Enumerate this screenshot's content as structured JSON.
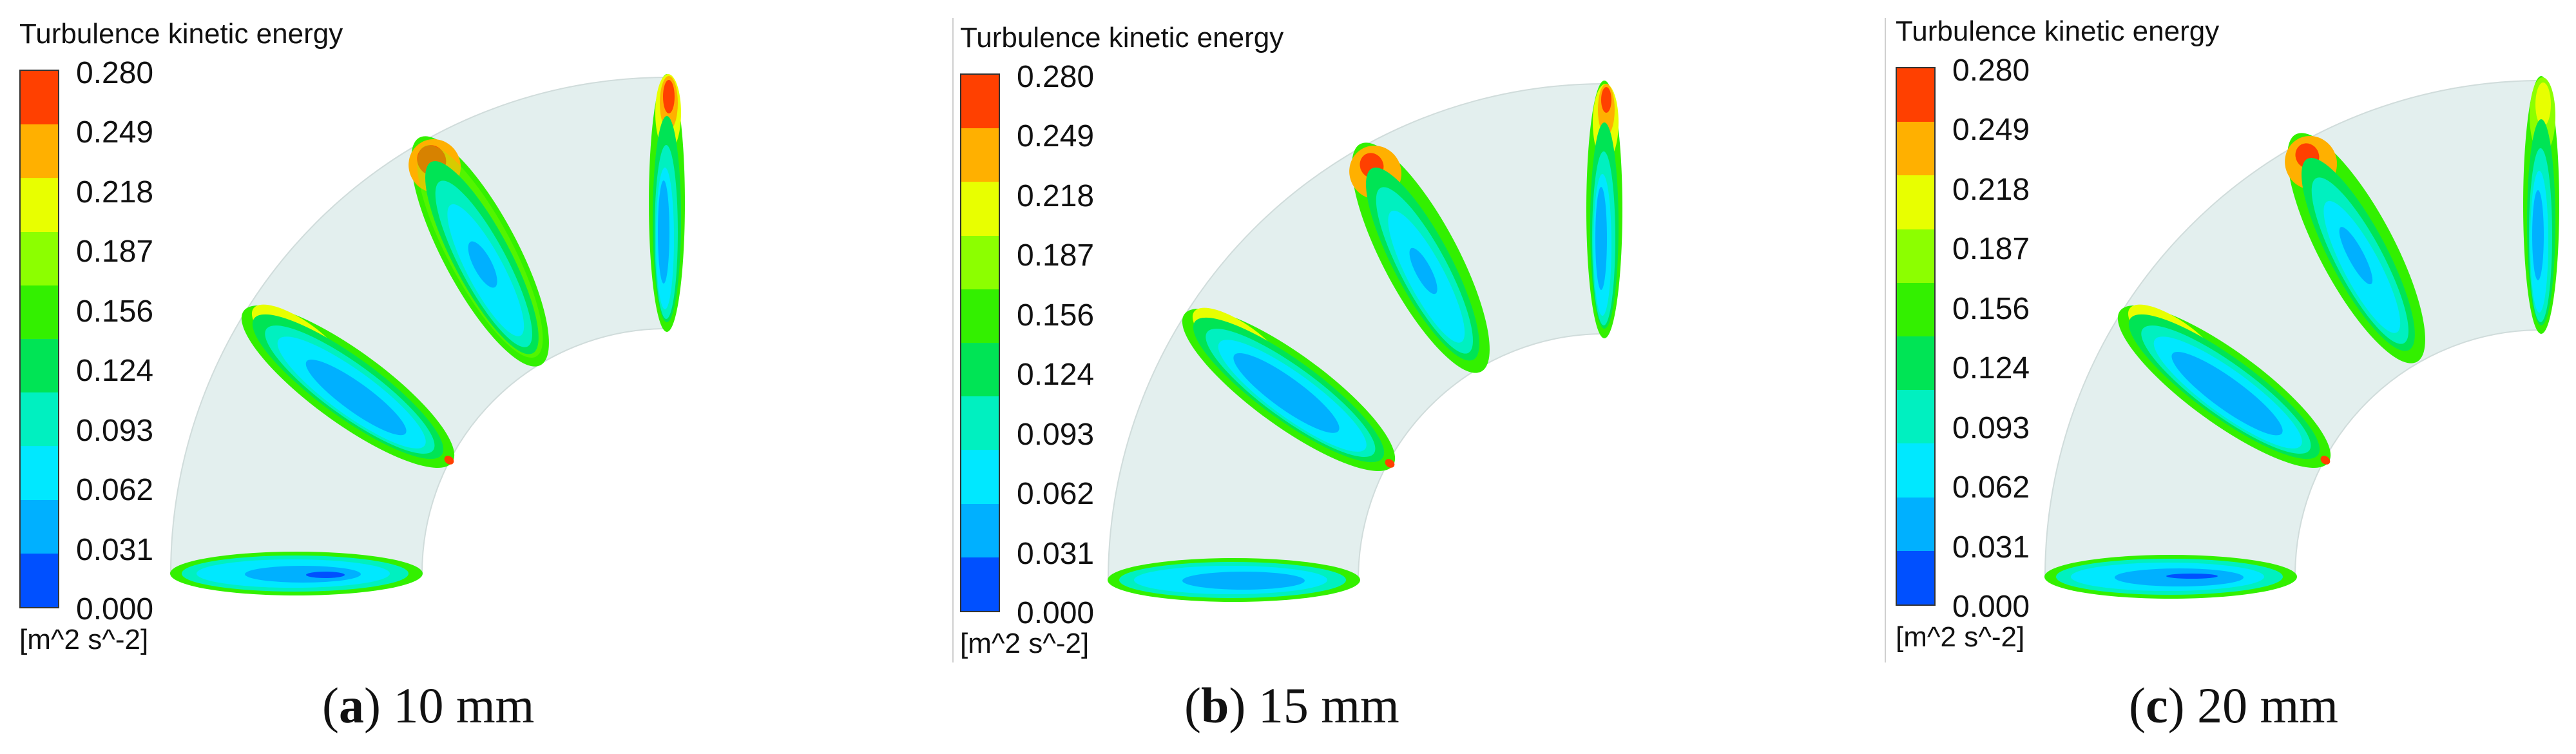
{
  "legend": {
    "title": "Turbulence kinetic energy",
    "ticks": [
      "0.280",
      "0.249",
      "0.218",
      "0.187",
      "0.156",
      "0.124",
      "0.093",
      "0.062",
      "0.031",
      "0.000"
    ],
    "units": "[m^2 s^-2]",
    "colors_top_to_bottom": [
      "#ff4000",
      "#ffb000",
      "#e8ff00",
      "#8cff00",
      "#33f000",
      "#00e455",
      "#00f0c0",
      "#00e8ff",
      "#00b0ff",
      "#0050ff"
    ]
  },
  "panels": [
    {
      "letter": "a",
      "label": "10 mm"
    },
    {
      "letter": "b",
      "label": "15 mm"
    },
    {
      "letter": "c",
      "label": "20 mm"
    }
  ]
}
